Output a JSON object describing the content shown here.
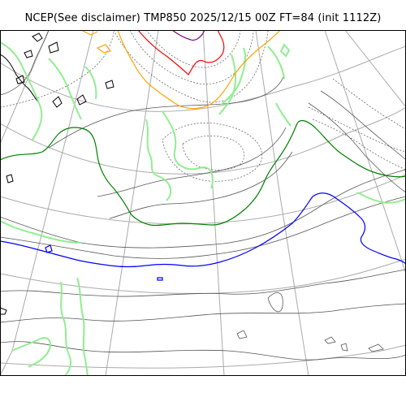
{
  "title": "NCEP(See disclaimer) TMP850 2025/12/15 00Z FT=84 (init 1112Z)",
  "map": {
    "colors": {
      "graticule": "#aaaaaa",
      "coastline": "#000000",
      "isotherm_thin": "#555555",
      "isotherm_dashed": "#555555",
      "isotherm_light_green": "#90ee90",
      "isotherm_green": "#008000",
      "isotherm_blue": "#0000ff",
      "isotherm_orange": "#ffa500",
      "isotherm_red": "#ff0000",
      "isotherm_purple": "#800080"
    }
  }
}
